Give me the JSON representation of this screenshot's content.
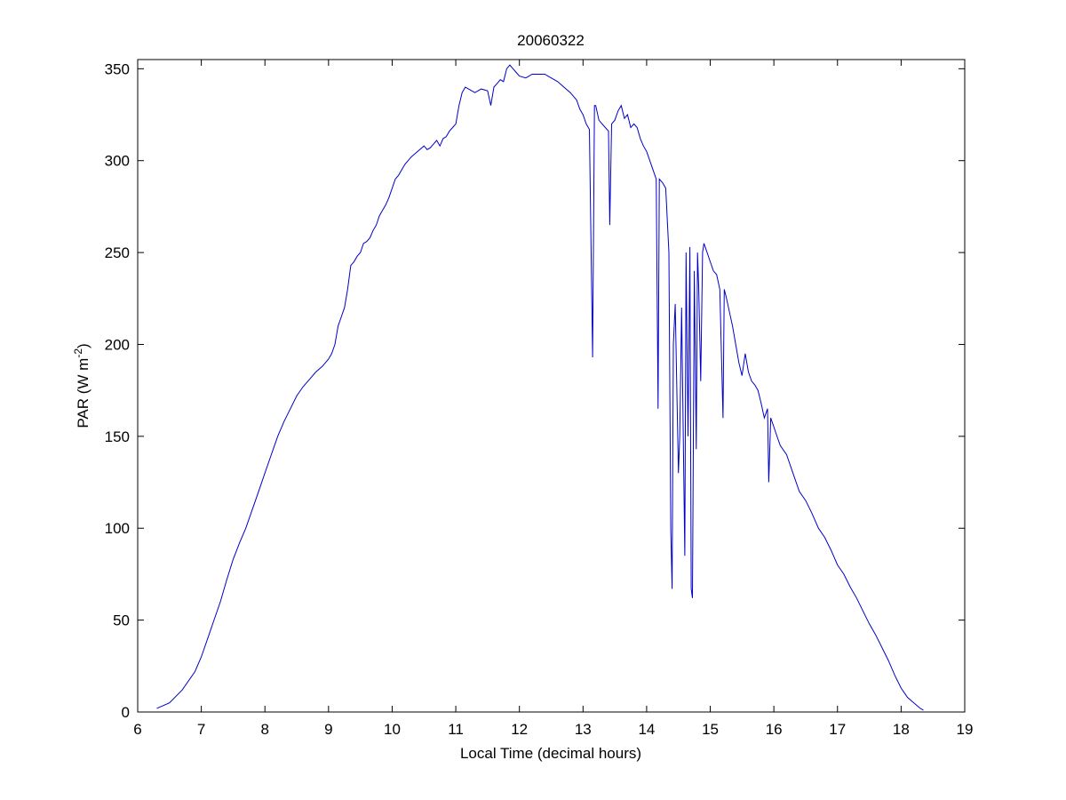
{
  "chart_data": {
    "type": "line",
    "title": "20060322",
    "xlabel": "Local Time (decimal hours)",
    "ylabel_main": "PAR (W m",
    "ylabel_sup": "-2",
    "ylabel_close": ")",
    "xlim": [
      6,
      19
    ],
    "ylim": [
      0,
      355
    ],
    "xticks": [
      6,
      7,
      8,
      9,
      10,
      11,
      12,
      13,
      14,
      15,
      16,
      17,
      18,
      19
    ],
    "yticks": [
      0,
      50,
      100,
      150,
      200,
      250,
      300,
      350
    ],
    "grid": false,
    "line_color": "#0000c8",
    "series": [
      {
        "x": [
          6.3,
          6.5,
          6.7,
          6.9,
          7.0,
          7.1,
          7.2,
          7.3,
          7.4,
          7.5,
          7.6,
          7.7,
          7.8,
          7.9,
          8.0,
          8.1,
          8.2,
          8.3,
          8.4,
          8.5,
          8.6,
          8.7,
          8.8,
          8.9,
          9.0,
          9.05,
          9.1,
          9.15,
          9.2,
          9.25,
          9.3,
          9.35,
          9.4,
          9.45,
          9.5,
          9.55,
          9.6,
          9.65,
          9.7,
          9.75,
          9.8,
          9.85,
          9.9,
          9.95,
          10.0,
          10.05,
          10.1,
          10.2,
          10.3,
          10.4,
          10.5,
          10.55,
          10.6,
          10.65,
          10.7,
          10.75,
          10.8,
          10.85,
          10.9,
          10.95,
          11.0,
          11.05,
          11.1,
          11.15,
          11.2,
          11.3,
          11.4,
          11.5,
          11.55,
          11.6,
          11.65,
          11.7,
          11.75,
          11.8,
          11.85,
          11.9,
          11.95,
          12.0,
          12.1,
          12.2,
          12.3,
          12.4,
          12.5,
          12.6,
          12.7,
          12.8,
          12.9,
          12.95,
          13.0,
          13.05,
          13.1,
          13.15,
          13.18,
          13.2,
          13.25,
          13.3,
          13.35,
          13.4,
          13.42,
          13.45,
          13.5,
          13.55,
          13.6,
          13.65,
          13.7,
          13.75,
          13.8,
          13.85,
          13.9,
          13.95,
          14.0,
          14.05,
          14.1,
          14.15,
          14.18,
          14.2,
          14.25,
          14.3,
          14.35,
          14.38,
          14.4,
          14.42,
          14.45,
          14.5,
          14.52,
          14.55,
          14.6,
          14.62,
          14.65,
          14.68,
          14.7,
          14.72,
          14.75,
          14.78,
          14.8,
          14.82,
          14.85,
          14.88,
          14.9,
          14.95,
          15.0,
          15.05,
          15.1,
          15.15,
          15.2,
          15.22,
          15.25,
          15.3,
          15.35,
          15.4,
          15.45,
          15.5,
          15.55,
          15.6,
          15.65,
          15.7,
          15.75,
          15.8,
          15.85,
          15.9,
          15.92,
          15.95,
          16.0,
          16.05,
          16.1,
          16.2,
          16.3,
          16.4,
          16.5,
          16.6,
          16.7,
          16.8,
          16.9,
          17.0,
          17.1,
          17.2,
          17.3,
          17.4,
          17.5,
          17.6,
          17.7,
          17.8,
          17.9,
          18.0,
          18.1,
          18.2,
          18.3,
          18.35
        ],
        "y": [
          2,
          5,
          12,
          22,
          30,
          40,
          50,
          60,
          72,
          83,
          92,
          100,
          110,
          120,
          130,
          140,
          150,
          158,
          165,
          172,
          177,
          181,
          185,
          188,
          192,
          195,
          200,
          210,
          215,
          220,
          230,
          243,
          245,
          248,
          250,
          255,
          256,
          258,
          262,
          265,
          270,
          273,
          276,
          280,
          285,
          290,
          292,
          298,
          302,
          305,
          308,
          306,
          307,
          309,
          311,
          308,
          312,
          313,
          316,
          318,
          320,
          330,
          337,
          340,
          339,
          337,
          339,
          338,
          330,
          340,
          342,
          344,
          343,
          350,
          352,
          350,
          348,
          346,
          345,
          347,
          347,
          347,
          345,
          343,
          340,
          337,
          333,
          328,
          325,
          320,
          317,
          193,
          330,
          330,
          322,
          320,
          318,
          316,
          265,
          320,
          322,
          327,
          330,
          323,
          325,
          318,
          320,
          318,
          312,
          308,
          305,
          300,
          295,
          290,
          165,
          290,
          288,
          285,
          250,
          99,
          67,
          200,
          222,
          130,
          150,
          220,
          85,
          250,
          150,
          253,
          67,
          62,
          240,
          143,
          250,
          230,
          180,
          250,
          255,
          250,
          245,
          240,
          238,
          230,
          160,
          230,
          226,
          218,
          210,
          200,
          190,
          183,
          195,
          185,
          180,
          178,
          175,
          168,
          160,
          165,
          125,
          160,
          155,
          150,
          145,
          140,
          130,
          120,
          115,
          108,
          100,
          95,
          88,
          80,
          75,
          68,
          62,
          55,
          48,
          42,
          35,
          28,
          20,
          13,
          8,
          5,
          2,
          1
        ]
      }
    ]
  }
}
